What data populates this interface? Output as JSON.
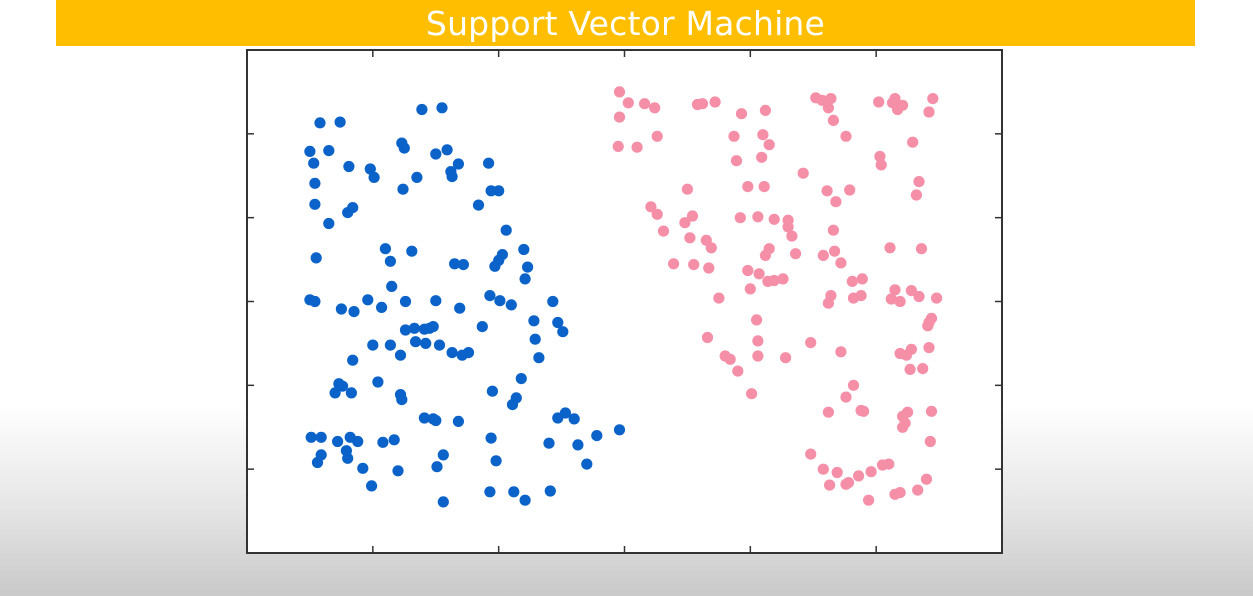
{
  "colors": {
    "title_bar": "#ffbf00",
    "class_a": "#0b63c9",
    "class_b": "#f58fa8"
  },
  "chart_data": {
    "type": "scatter",
    "title": "Support Vector Machine",
    "xlabel": "",
    "ylabel": "",
    "xlim": [
      0,
      6
    ],
    "ylim": [
      0,
      6
    ],
    "grid": false,
    "xticks": [
      1,
      2,
      3,
      4,
      5
    ],
    "yticks": [
      1,
      2,
      3,
      4,
      5
    ],
    "series": [
      {
        "color": "#0b63c9",
        "points": [
          [
            0.58,
            5.13
          ],
          [
            0.74,
            5.14
          ],
          [
            1.39,
            5.29
          ],
          [
            1.55,
            5.31
          ],
          [
            0.5,
            4.79
          ],
          [
            0.53,
            4.65
          ],
          [
            0.65,
            4.8
          ],
          [
            0.81,
            4.61
          ],
          [
            0.98,
            4.58
          ],
          [
            1.01,
            4.48
          ],
          [
            1.23,
            4.89
          ],
          [
            1.25,
            4.83
          ],
          [
            1.5,
            4.76
          ],
          [
            1.59,
            4.81
          ],
          [
            1.62,
            4.55
          ],
          [
            1.68,
            4.64
          ],
          [
            1.92,
            4.65
          ],
          [
            1.35,
            4.48
          ],
          [
            1.63,
            4.49
          ],
          [
            1.24,
            4.34
          ],
          [
            0.54,
            4.41
          ],
          [
            0.54,
            4.16
          ],
          [
            0.8,
            4.06
          ],
          [
            0.84,
            4.12
          ],
          [
            0.65,
            3.93
          ],
          [
            0.55,
            3.52
          ],
          [
            1.94,
            4.32
          ],
          [
            2.0,
            4.32
          ],
          [
            1.84,
            4.15
          ],
          [
            2.06,
            3.85
          ],
          [
            2.2,
            3.62
          ],
          [
            2.23,
            3.41
          ],
          [
            1.1,
            3.63
          ],
          [
            1.14,
            3.48
          ],
          [
            1.31,
            3.6
          ],
          [
            1.65,
            3.45
          ],
          [
            1.72,
            3.44
          ],
          [
            1.97,
            3.42
          ],
          [
            2.0,
            3.49
          ],
          [
            2.03,
            3.56
          ],
          [
            2.21,
            3.27
          ],
          [
            1.15,
            3.18
          ],
          [
            0.5,
            3.02
          ],
          [
            0.54,
            3.0
          ],
          [
            0.75,
            2.91
          ],
          [
            0.85,
            2.88
          ],
          [
            0.96,
            3.02
          ],
          [
            1.07,
            2.93
          ],
          [
            1.26,
            3.0
          ],
          [
            1.5,
            3.01
          ],
          [
            1.69,
            2.92
          ],
          [
            1.93,
            3.07
          ],
          [
            2.01,
            3.01
          ],
          [
            2.1,
            2.96
          ],
          [
            2.43,
            3.0
          ],
          [
            2.28,
            2.77
          ],
          [
            2.47,
            2.75
          ],
          [
            2.51,
            2.64
          ],
          [
            2.29,
            2.55
          ],
          [
            1.26,
            2.66
          ],
          [
            1.33,
            2.68
          ],
          [
            1.41,
            2.67
          ],
          [
            1.45,
            2.68
          ],
          [
            1.48,
            2.7
          ],
          [
            1.87,
            2.7
          ],
          [
            1.0,
            2.48
          ],
          [
            1.14,
            2.48
          ],
          [
            1.34,
            2.52
          ],
          [
            1.42,
            2.5
          ],
          [
            1.53,
            2.48
          ],
          [
            1.63,
            2.39
          ],
          [
            1.71,
            2.36
          ],
          [
            1.76,
            2.39
          ],
          [
            1.22,
            2.36
          ],
          [
            0.84,
            2.3
          ],
          [
            2.32,
            2.33
          ],
          [
            2.18,
            2.08
          ],
          [
            0.73,
            2.02
          ],
          [
            0.76,
            1.99
          ],
          [
            0.7,
            1.91
          ],
          [
            0.83,
            1.91
          ],
          [
            1.04,
            2.04
          ],
          [
            1.22,
            1.89
          ],
          [
            1.23,
            1.83
          ],
          [
            1.41,
            1.61
          ],
          [
            1.48,
            1.6
          ],
          [
            1.5,
            1.58
          ],
          [
            1.68,
            1.57
          ],
          [
            1.95,
            1.93
          ],
          [
            2.14,
            1.85
          ],
          [
            2.11,
            1.77
          ],
          [
            2.47,
            1.61
          ],
          [
            2.53,
            1.67
          ],
          [
            2.6,
            1.6
          ],
          [
            0.51,
            1.38
          ],
          [
            0.59,
            1.38
          ],
          [
            0.72,
            1.33
          ],
          [
            0.82,
            1.38
          ],
          [
            0.88,
            1.33
          ],
          [
            0.59,
            1.17
          ],
          [
            0.56,
            1.08
          ],
          [
            0.79,
            1.22
          ],
          [
            0.8,
            1.13
          ],
          [
            0.92,
            1.01
          ],
          [
            1.08,
            1.32
          ],
          [
            1.17,
            1.35
          ],
          [
            1.2,
            0.98
          ],
          [
            1.56,
            1.17
          ],
          [
            1.51,
            1.03
          ],
          [
            1.94,
            1.37
          ],
          [
            1.98,
            1.1
          ],
          [
            2.4,
            1.31
          ],
          [
            2.63,
            1.29
          ],
          [
            2.7,
            1.06
          ],
          [
            2.78,
            1.4
          ],
          [
            2.96,
            1.47
          ],
          [
            0.99,
            0.8
          ],
          [
            1.56,
            0.61
          ],
          [
            1.93,
            0.73
          ],
          [
            2.12,
            0.73
          ],
          [
            2.21,
            0.63
          ],
          [
            2.41,
            0.74
          ]
        ]
      },
      {
        "color": "#f58fa8",
        "points": [
          [
            2.96,
            5.5
          ],
          [
            3.03,
            5.37
          ],
          [
            3.16,
            5.36
          ],
          [
            3.24,
            5.31
          ],
          [
            2.96,
            5.2
          ],
          [
            2.95,
            4.85
          ],
          [
            3.1,
            4.84
          ],
          [
            3.26,
            4.97
          ],
          [
            3.58,
            5.35
          ],
          [
            3.62,
            5.36
          ],
          [
            3.72,
            5.38
          ],
          [
            3.93,
            5.24
          ],
          [
            4.12,
            5.28
          ],
          [
            4.52,
            5.43
          ],
          [
            4.57,
            5.4
          ],
          [
            4.64,
            5.42
          ],
          [
            4.62,
            5.31
          ],
          [
            4.66,
            5.16
          ],
          [
            4.76,
            4.97
          ],
          [
            5.02,
            5.38
          ],
          [
            5.13,
            5.37
          ],
          [
            5.15,
            5.42
          ],
          [
            5.21,
            5.34
          ],
          [
            5.17,
            5.29
          ],
          [
            5.45,
            5.42
          ],
          [
            5.42,
            5.26
          ],
          [
            5.29,
            4.9
          ],
          [
            3.87,
            4.97
          ],
          [
            4.1,
            4.99
          ],
          [
            4.15,
            4.87
          ],
          [
            4.09,
            4.72
          ],
          [
            3.89,
            4.68
          ],
          [
            3.98,
            4.37
          ],
          [
            4.11,
            4.37
          ],
          [
            4.42,
            4.53
          ],
          [
            4.61,
            4.32
          ],
          [
            4.79,
            4.33
          ],
          [
            5.03,
            4.73
          ],
          [
            5.04,
            4.63
          ],
          [
            5.34,
            4.43
          ],
          [
            5.32,
            4.27
          ],
          [
            3.5,
            4.34
          ],
          [
            3.21,
            4.13
          ],
          [
            3.26,
            4.04
          ],
          [
            3.31,
            3.84
          ],
          [
            3.48,
            3.94
          ],
          [
            3.54,
            4.02
          ],
          [
            3.52,
            3.76
          ],
          [
            3.92,
            4.0
          ],
          [
            4.06,
            4.01
          ],
          [
            4.19,
            3.98
          ],
          [
            4.3,
            3.97
          ],
          [
            4.33,
            3.78
          ],
          [
            4.3,
            3.89
          ],
          [
            4.68,
            4.19
          ],
          [
            4.66,
            3.85
          ],
          [
            3.65,
            3.73
          ],
          [
            3.69,
            3.64
          ],
          [
            3.39,
            3.45
          ],
          [
            3.55,
            3.44
          ],
          [
            3.67,
            3.4
          ],
          [
            3.98,
            3.37
          ],
          [
            4.12,
            3.55
          ],
          [
            4.15,
            3.63
          ],
          [
            4.07,
            3.33
          ],
          [
            4.14,
            3.24
          ],
          [
            4.19,
            3.25
          ],
          [
            4.36,
            3.57
          ],
          [
            4.58,
            3.55
          ],
          [
            4.67,
            3.6
          ],
          [
            4.72,
            3.46
          ],
          [
            4.81,
            3.24
          ],
          [
            4.89,
            3.27
          ],
          [
            5.11,
            3.64
          ],
          [
            5.36,
            3.63
          ],
          [
            3.75,
            3.04
          ],
          [
            4.0,
            3.15
          ],
          [
            4.26,
            3.27
          ],
          [
            4.82,
            3.04
          ],
          [
            4.88,
            3.07
          ],
          [
            4.64,
            3.07
          ],
          [
            4.62,
            2.98
          ],
          [
            5.15,
            3.14
          ],
          [
            5.12,
            3.03
          ],
          [
            5.19,
            3.0
          ],
          [
            5.28,
            3.13
          ],
          [
            5.34,
            3.06
          ],
          [
            5.48,
            3.04
          ],
          [
            5.44,
            2.8
          ],
          [
            5.42,
            2.75
          ],
          [
            5.41,
            2.71
          ],
          [
            5.42,
            2.45
          ],
          [
            3.66,
            2.57
          ],
          [
            4.05,
            2.78
          ],
          [
            4.06,
            2.53
          ],
          [
            4.48,
            2.51
          ],
          [
            4.72,
            2.4
          ],
          [
            3.8,
            2.35
          ],
          [
            3.84,
            2.31
          ],
          [
            3.9,
            2.17
          ],
          [
            4.06,
            2.35
          ],
          [
            4.28,
            2.33
          ],
          [
            4.01,
            1.9
          ],
          [
            5.19,
            2.38
          ],
          [
            5.24,
            2.36
          ],
          [
            5.28,
            2.43
          ],
          [
            5.27,
            2.19
          ],
          [
            5.37,
            2.2
          ],
          [
            4.82,
            2.0
          ],
          [
            4.62,
            1.68
          ],
          [
            4.76,
            1.86
          ],
          [
            4.88,
            1.7
          ],
          [
            4.9,
            1.69
          ],
          [
            5.21,
            1.63
          ],
          [
            5.25,
            1.68
          ],
          [
            5.23,
            1.55
          ],
          [
            5.44,
            1.69
          ],
          [
            5.43,
            1.33
          ],
          [
            5.21,
            1.5
          ],
          [
            4.48,
            1.18
          ],
          [
            4.58,
            1.0
          ],
          [
            4.69,
            0.96
          ],
          [
            4.78,
            0.84
          ],
          [
            4.86,
            0.92
          ],
          [
            4.76,
            0.82
          ],
          [
            4.63,
            0.81
          ],
          [
            4.96,
            0.97
          ],
          [
            5.05,
            1.05
          ],
          [
            5.1,
            1.06
          ],
          [
            5.15,
            0.7
          ],
          [
            5.19,
            0.72
          ],
          [
            5.33,
            0.75
          ],
          [
            5.4,
            0.88
          ],
          [
            4.94,
            0.63
          ]
        ]
      }
    ]
  }
}
